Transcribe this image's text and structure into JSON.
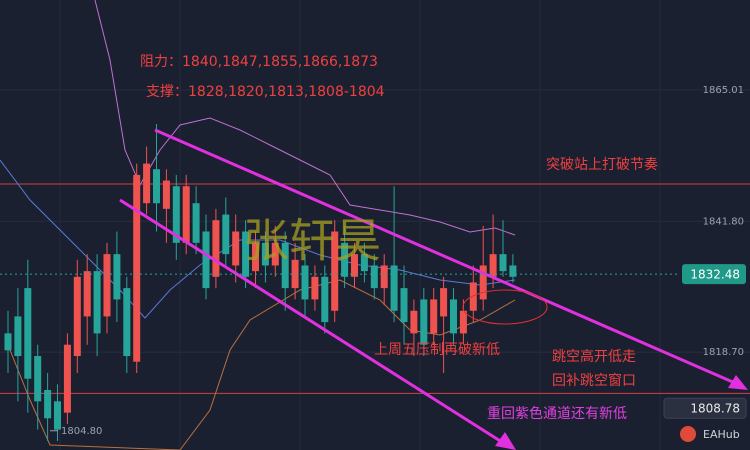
{
  "chart_data": {
    "type": "candlestick",
    "open": [
      1822,
      1825,
      1830,
      1818,
      1812,
      1810,
      1808,
      1818,
      1825,
      1833,
      1825,
      1836,
      1830,
      1817,
      1845,
      1851,
      1844,
      1848,
      1838,
      1845,
      1840,
      1832,
      1843,
      1834,
      1840,
      1833,
      1838,
      1834,
      1838,
      1830,
      1834,
      1828,
      1832,
      1826,
      1838,
      1832,
      1836,
      1834,
      1830,
      1834,
      1830,
      1822,
      1828,
      1822,
      1825,
      1828,
      1822,
      1826,
      1828,
      1832,
      1836,
      1834
    ],
    "high": [
      1826,
      1830,
      1835,
      1820,
      1815,
      1813,
      1822,
      1835,
      1836,
      1836,
      1838,
      1840,
      1832,
      1852,
      1855,
      1859,
      1851,
      1850,
      1850,
      1848,
      1843,
      1844,
      1846,
      1843,
      1842,
      1840,
      1840,
      1841,
      1840,
      1838,
      1836,
      1834,
      1834,
      1842,
      1841,
      1838,
      1838,
      1836,
      1836,
      1848,
      1834,
      1828,
      1830,
      1830,
      1832,
      1830,
      1828,
      1834,
      1841,
      1843,
      1842,
      1836
    ],
    "low": [
      1815,
      1810,
      1808,
      1805,
      1803,
      1803,
      1806,
      1815,
      1820,
      1818,
      1822,
      1824,
      1815,
      1815,
      1843,
      1840,
      1838,
      1835,
      1836,
      1836,
      1828,
      1830,
      1834,
      1831,
      1830,
      1830,
      1831,
      1832,
      1826,
      1828,
      1825,
      1826,
      1822,
      1824,
      1830,
      1830,
      1831,
      1828,
      1827,
      1824,
      1820,
      1818,
      1818,
      1820,
      1815,
      1820,
      1820,
      1824,
      1826,
      1830,
      1832,
      1831
    ],
    "close": [
      1819,
      1818,
      1814,
      1810,
      1807,
      1805,
      1820,
      1832,
      1833,
      1822,
      1836,
      1828,
      1818,
      1850,
      1852,
      1845,
      1849,
      1838,
      1848,
      1838,
      1830,
      1842,
      1836,
      1840,
      1832,
      1838,
      1834,
      1838,
      1830,
      1835,
      1828,
      1832,
      1824,
      1840,
      1832,
      1836,
      1833,
      1830,
      1834,
      1826,
      1824,
      1826,
      1820,
      1828,
      1830,
      1822,
      1826,
      1831,
      1834,
      1836,
      1833,
      1832
    ],
    "up_color": "#ef5350",
    "down_color": "#26a69a",
    "ylim": [
      1801.4,
      1880.9
    ],
    "yticks": [
      1865.01,
      {
        "value": 1841.8,
        "label": "1841.80"
      },
      {
        "value": 1818.7,
        "label": "1818.70"
      }
    ],
    "grid": true,
    "levels": [
      1848.4,
      1811.4
    ],
    "current_price": 1832.48,
    "marker_price": 1808.78,
    "low_label": {
      "value": 1804.8,
      "label": "1804.80"
    },
    "annotations": {
      "resistance": "阻力：1840,1847,1855,1866,1873",
      "support": "支撑：1828,1820,1813,1808-1804",
      "breakout": "突破站上打破节奏",
      "watermark": "张轩昊",
      "friday": "上周五压制再破新低",
      "gap1": "跳空高开低走",
      "gap2": "回补跳空窗口",
      "channel": "重回紫色通道还有新低"
    },
    "brand": "EAHub"
  }
}
